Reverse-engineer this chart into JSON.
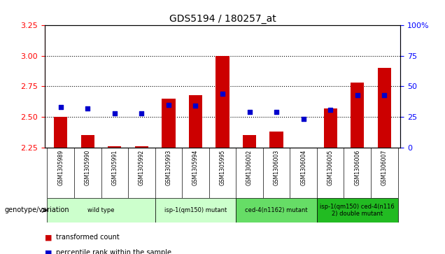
{
  "title": "GDS5194 / 180257_at",
  "samples": [
    "GSM1305989",
    "GSM1305990",
    "GSM1305991",
    "GSM1305992",
    "GSM1305993",
    "GSM1305994",
    "GSM1305995",
    "GSM1306002",
    "GSM1306003",
    "GSM1306004",
    "GSM1306005",
    "GSM1306006",
    "GSM1306007"
  ],
  "bar_heights": [
    2.5,
    2.35,
    2.26,
    2.26,
    2.65,
    2.68,
    3.0,
    2.35,
    2.38,
    2.24,
    2.57,
    2.78,
    2.9
  ],
  "blue_values": [
    33,
    32,
    28,
    28,
    35,
    34,
    44,
    29,
    29,
    23,
    31,
    43,
    43
  ],
  "bar_color": "#cc0000",
  "blue_color": "#0000cc",
  "ylim_left": [
    2.25,
    3.25
  ],
  "ylim_right": [
    0,
    100
  ],
  "yticks_left": [
    2.25,
    2.5,
    2.75,
    3.0,
    3.25
  ],
  "yticks_right": [
    0,
    25,
    50,
    75,
    100
  ],
  "grid_values": [
    2.5,
    2.75,
    3.0
  ],
  "group_defs": [
    {
      "start": 0,
      "end": 3,
      "label": "wild type",
      "color": "#ccffcc"
    },
    {
      "start": 4,
      "end": 6,
      "label": "isp-1(qm150) mutant",
      "color": "#ccffcc"
    },
    {
      "start": 7,
      "end": 9,
      "label": "ced-4(n1162) mutant",
      "color": "#66dd66"
    },
    {
      "start": 10,
      "end": 12,
      "label": "isp-1(qm150) ced-4(n116\n2) double mutant",
      "color": "#22bb22"
    }
  ],
  "bar_bottom": 2.25,
  "legend_label_bar": "transformed count",
  "legend_label_blue": "percentile rank within the sample",
  "genotype_label": "genotype/variation",
  "right_axis_pct": "100%",
  "xtick_bg": "#cccccc",
  "plot_bg": "#ffffff"
}
